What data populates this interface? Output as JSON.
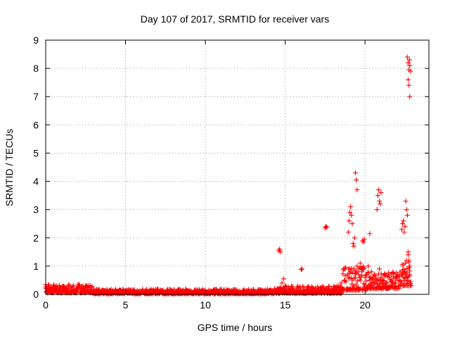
{
  "chart_data": {
    "type": "scatter",
    "title": "Day 107 of 2017, SRMTID for receiver vars",
    "xlabel": "GPS time / hours",
    "ylabel": "SRMTID / TECUs",
    "xlim": [
      0,
      24
    ],
    "ylim": [
      0,
      9
    ],
    "x_ticks": [
      "0",
      "5",
      "10",
      "15",
      "20"
    ],
    "x_tick_values": [
      0,
      5,
      10,
      15,
      20
    ],
    "y_ticks": [
      "0",
      "1",
      "2",
      "3",
      "4",
      "5",
      "6",
      "7",
      "8",
      "9"
    ],
    "y_tick_values": [
      0,
      1,
      2,
      3,
      4,
      5,
      6,
      7,
      8,
      9
    ],
    "grid": true,
    "marker": "plus",
    "color": "#ff0000",
    "series": [
      {
        "x": [
          0.0,
          0.1,
          0.2,
          0.3,
          0.5,
          0.7,
          0.9,
          1.1,
          1.3,
          1.6,
          1.9,
          2.2,
          2.5,
          2.8,
          3.1,
          3.4,
          3.7,
          4.0,
          4.3,
          4.6,
          4.9,
          5.2,
          5.5,
          5.8,
          6.1,
          6.4,
          6.7,
          7.0,
          7.3,
          7.6,
          7.9,
          8.2,
          8.5,
          8.8,
          9.1,
          9.4,
          9.7,
          10.0,
          10.3,
          10.6,
          10.9,
          11.2,
          11.5,
          11.8,
          12.1,
          12.4,
          12.7,
          13.0,
          13.3,
          13.6,
          13.9,
          14.2,
          14.5,
          14.7,
          14.8,
          14.9,
          15.0,
          15.2,
          15.5,
          15.8,
          16.1,
          16.4,
          16.7,
          17.0,
          17.3,
          17.6,
          17.9,
          18.1,
          18.3,
          18.5,
          18.7,
          18.9,
          19.0,
          19.1,
          19.2,
          19.3,
          19.4,
          19.5,
          19.6,
          19.7,
          19.8,
          19.9,
          20.0,
          20.1,
          20.2,
          20.3,
          20.4,
          20.5,
          20.6,
          20.7,
          20.8,
          20.9,
          21.0,
          21.1,
          21.2,
          21.3,
          21.5,
          21.7,
          21.9,
          22.1,
          22.3,
          22.4,
          22.5,
          22.6,
          22.7,
          22.8,
          14.6,
          14.65,
          14.7,
          16.0,
          16.05,
          17.5,
          17.55,
          17.6,
          18.95,
          19.0,
          19.05,
          19.1,
          19.15,
          19.2,
          19.25,
          19.3,
          19.35,
          19.4,
          19.45,
          19.5,
          19.85,
          19.9,
          19.95,
          20.3,
          20.75,
          20.8,
          20.85,
          20.9,
          20.95,
          21.0,
          22.3,
          22.35,
          22.4,
          22.45,
          22.5,
          22.55,
          22.6,
          22.65,
          22.7,
          22.75,
          22.8,
          22.65,
          22.7,
          22.75,
          22.8,
          22.85,
          22.7,
          22.75,
          22.8,
          22.78
        ],
        "y": [
          0.22,
          0.18,
          0.15,
          0.2,
          0.25,
          0.3,
          0.25,
          0.28,
          0.22,
          0.24,
          0.18,
          0.2,
          0.28,
          0.15,
          0.12,
          0.1,
          0.12,
          0.08,
          0.1,
          0.14,
          0.1,
          0.09,
          0.08,
          0.07,
          0.08,
          0.1,
          0.09,
          0.1,
          0.12,
          0.15,
          0.14,
          0.12,
          0.1,
          0.12,
          0.1,
          0.08,
          0.09,
          0.1,
          0.08,
          0.09,
          0.1,
          0.09,
          0.08,
          0.07,
          0.08,
          0.09,
          0.08,
          0.07,
          0.09,
          0.1,
          0.12,
          0.1,
          0.13,
          0.25,
          0.4,
          0.55,
          0.3,
          0.1,
          0.12,
          0.1,
          0.15,
          0.18,
          0.12,
          0.14,
          0.1,
          0.12,
          0.2,
          0.25,
          0.3,
          0.4,
          0.5,
          0.7,
          0.6,
          0.8,
          0.5,
          0.9,
          0.6,
          1.0,
          0.7,
          1.1,
          0.8,
          0.9,
          0.6,
          0.7,
          1.0,
          0.5,
          0.8,
          0.6,
          0.7,
          0.5,
          0.4,
          0.9,
          0.6,
          0.5,
          0.7,
          0.4,
          0.6,
          0.5,
          0.4,
          0.3,
          0.4,
          0.6,
          0.8,
          1.2,
          1.4,
          0.7,
          1.55,
          1.6,
          1.5,
          0.88,
          0.9,
          2.35,
          2.4,
          2.38,
          2.2,
          2.6,
          2.9,
          3.1,
          2.8,
          2.5,
          1.8,
          1.7,
          2.0,
          4.3,
          4.05,
          3.7,
          1.9,
          1.85,
          1.95,
          2.15,
          3.0,
          3.5,
          3.7,
          3.3,
          3.2,
          3.6,
          2.3,
          2.5,
          2.6,
          2.2,
          2.4,
          3.3,
          3.0,
          2.8,
          1.5,
          1.2,
          1.0,
          8.4,
          8.2,
          7.95,
          8.1,
          7.9,
          7.6,
          7.4,
          7.0,
          8.3
        ],
        "dense_bands": [
          {
            "x_from": 0.0,
            "x_to": 3.0,
            "y_from": 0.05,
            "y_to": 0.35
          },
          {
            "x_from": 3.0,
            "x_to": 14.3,
            "y_from": 0.02,
            "y_to": 0.18
          },
          {
            "x_from": 14.3,
            "x_to": 18.6,
            "y_from": 0.03,
            "y_to": 0.3
          },
          {
            "x_from": 18.6,
            "x_to": 20.2,
            "y_from": 0.15,
            "y_to": 1.0
          },
          {
            "x_from": 20.2,
            "x_to": 22.3,
            "y_from": 0.2,
            "y_to": 0.8
          },
          {
            "x_from": 22.3,
            "x_to": 22.9,
            "y_from": 0.3,
            "y_to": 1.2
          }
        ]
      }
    ]
  }
}
